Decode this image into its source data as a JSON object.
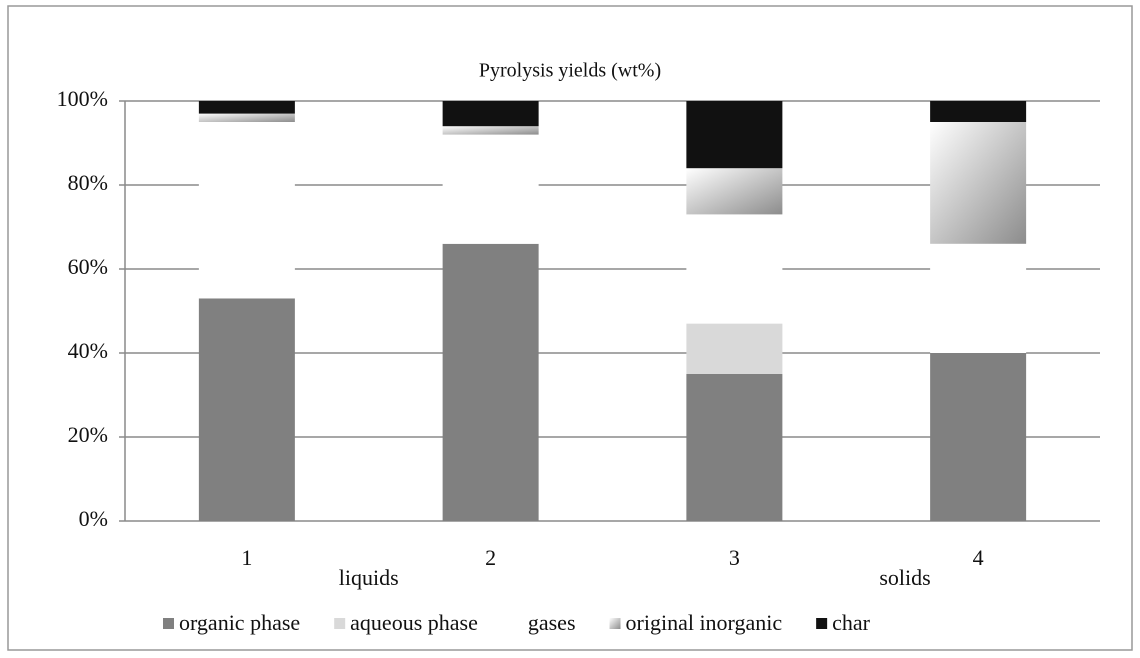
{
  "chart_data": {
    "type": "stacked_bar",
    "title": "Pyrolysis yields (wt%)",
    "categories": [
      "1",
      "2",
      "3",
      "4"
    ],
    "annotations": [
      "liquids",
      "solids"
    ],
    "series": [
      {
        "name": "organic phase",
        "color": "#808080",
        "values": [
          53,
          66,
          35,
          40
        ]
      },
      {
        "name": "aqueous phase",
        "color": "#d9d9d9",
        "values": [
          0,
          0,
          12,
          0
        ]
      },
      {
        "name": "gases",
        "color": "#ffffff",
        "values": [
          42,
          26,
          26,
          26
        ]
      },
      {
        "name": "original inorganic",
        "color": "#8c8c8c",
        "gradient": true,
        "values": [
          2,
          2,
          11,
          29
        ]
      },
      {
        "name": "char",
        "color": "#111111",
        "values": [
          3,
          6,
          16,
          5
        ]
      }
    ],
    "ylim": [
      0,
      100
    ],
    "yticks": [
      {
        "value": 0,
        "label": "0%"
      },
      {
        "value": 20,
        "label": "20%"
      },
      {
        "value": 40,
        "label": "40%"
      },
      {
        "value": 60,
        "label": "60%"
      },
      {
        "value": 80,
        "label": "80%"
      },
      {
        "value": 100,
        "label": "100%"
      }
    ],
    "grid": true,
    "legend": "bottom"
  }
}
